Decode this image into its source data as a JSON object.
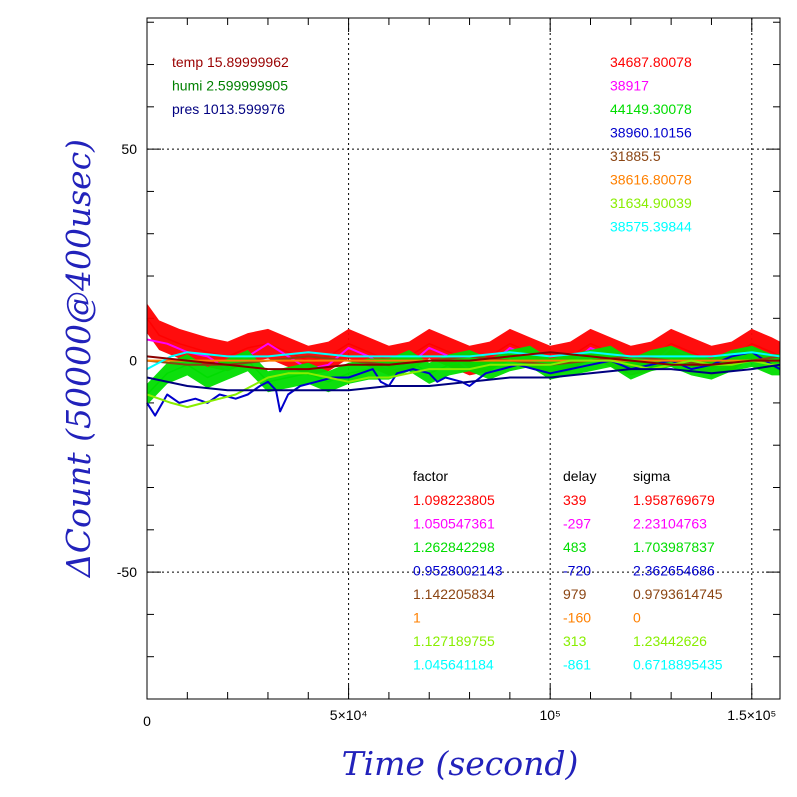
{
  "chart_data": {
    "type": "line",
    "xlabel": "Time (second)",
    "ylabel": "ΔCount (50000@400usec)",
    "xlim": [
      0,
      157000
    ],
    "ylim": [
      -80,
      81
    ],
    "x_ticks": [
      {
        "value": 0,
        "label": "0"
      },
      {
        "value": 50000,
        "label": "5×10⁴"
      },
      {
        "value": 100000,
        "label": "10⁵"
      },
      {
        "value": 150000,
        "label": "1.5×10⁵"
      }
    ],
    "y_ticks": [
      {
        "value": -50,
        "label": "-50"
      },
      {
        "value": 0,
        "label": "0"
      },
      {
        "value": 50,
        "label": "50"
      }
    ],
    "grid": true,
    "environment": [
      {
        "label": "temp 15.89999962",
        "color": "#990000"
      },
      {
        "label": "humi 2.599999905",
        "color": "#008000"
      },
      {
        "label": "pres 1013.599976",
        "color": "#000080"
      }
    ],
    "legend_values": [
      {
        "text": "34687.80078",
        "color": "#ff0000"
      },
      {
        "text": "38917",
        "color": "#ff00ff"
      },
      {
        "text": "44149.30078",
        "color": "#00dd00"
      },
      {
        "text": "38960.10156",
        "color": "#0000cc"
      },
      {
        "text": "31885.5",
        "color": "#8b4513"
      },
      {
        "text": "38616.80078",
        "color": "#ff8000"
      },
      {
        "text": "31634.90039",
        "color": "#88ee00"
      },
      {
        "text": "38575.39844",
        "color": "#00ffff"
      }
    ],
    "table_headers": [
      "factor",
      "delay",
      "sigma"
    ],
    "table_rows": [
      {
        "factor": "1.098223805",
        "delay": "339",
        "sigma": "1.958769679",
        "color": "#ff0000"
      },
      {
        "factor": "1.050547361",
        "delay": "-297",
        "sigma": "2.23104763",
        "color": "#ff00ff"
      },
      {
        "factor": "1.262842298",
        "delay": "483",
        "sigma": "1.703987837",
        "color": "#00dd00"
      },
      {
        "factor": "0.9528002143",
        "delay": "-720",
        "sigma": "2.362654686",
        "color": "#0000cc"
      },
      {
        "factor": "1.142205834",
        "delay": "979",
        "sigma": "0.9793614745",
        "color": "#8b4513"
      },
      {
        "factor": "1",
        "delay": "-160",
        "sigma": "0",
        "color": "#ff8000"
      },
      {
        "factor": "1.127189755",
        "delay": "313",
        "sigma": "1.23442626",
        "color": "#88ee00"
      },
      {
        "factor": "1.045641184",
        "delay": "-861",
        "sigma": "0.6718895435",
        "color": "#00ffff"
      }
    ],
    "series": [
      {
        "color": "#ff0000",
        "band": 3.5,
        "points": [
          [
            0,
            10
          ],
          [
            3000,
            6
          ],
          [
            8000,
            4
          ],
          [
            15000,
            2
          ],
          [
            20000,
            1
          ],
          [
            25000,
            3
          ],
          [
            30000,
            4
          ],
          [
            35000,
            2
          ],
          [
            40000,
            0
          ],
          [
            45000,
            1
          ],
          [
            50000,
            4
          ],
          [
            55000,
            2
          ],
          [
            60000,
            0
          ],
          [
            65000,
            1
          ],
          [
            70000,
            4
          ],
          [
            75000,
            2
          ],
          [
            80000,
            0
          ],
          [
            85000,
            1
          ],
          [
            90000,
            4
          ],
          [
            95000,
            2
          ],
          [
            100000,
            0
          ],
          [
            105000,
            1
          ],
          [
            110000,
            4
          ],
          [
            115000,
            2
          ],
          [
            120000,
            0
          ],
          [
            125000,
            1
          ],
          [
            130000,
            4
          ],
          [
            135000,
            2
          ],
          [
            140000,
            0
          ],
          [
            145000,
            1
          ],
          [
            150000,
            4
          ],
          [
            155000,
            2
          ],
          [
            157000,
            1
          ]
        ]
      },
      {
        "color": "#ff00ff",
        "band": 0,
        "points": [
          [
            0,
            5
          ],
          [
            5000,
            4
          ],
          [
            10000,
            2
          ],
          [
            15000,
            1
          ],
          [
            20000,
            -2
          ],
          [
            25000,
            1
          ],
          [
            30000,
            4
          ],
          [
            35000,
            1
          ],
          [
            40000,
            -2
          ],
          [
            45000,
            -1
          ],
          [
            50000,
            3
          ],
          [
            55000,
            1
          ],
          [
            60000,
            -2
          ],
          [
            65000,
            -1
          ],
          [
            70000,
            3
          ],
          [
            75000,
            1
          ],
          [
            80000,
            -2
          ],
          [
            85000,
            -1
          ],
          [
            90000,
            3
          ],
          [
            95000,
            1
          ],
          [
            100000,
            -2
          ],
          [
            105000,
            -1
          ],
          [
            110000,
            3
          ],
          [
            115000,
            1
          ],
          [
            120000,
            -3
          ],
          [
            125000,
            -1
          ],
          [
            130000,
            3
          ],
          [
            135000,
            1
          ],
          [
            140000,
            -2
          ],
          [
            145000,
            -1
          ],
          [
            150000,
            3
          ],
          [
            155000,
            0
          ],
          [
            157000,
            -1
          ]
        ]
      },
      {
        "color": "#00dd00",
        "band": 2.5,
        "points": [
          [
            0,
            -8
          ],
          [
            5000,
            -3
          ],
          [
            10000,
            -1
          ],
          [
            15000,
            -4
          ],
          [
            20000,
            -2
          ],
          [
            25000,
            0
          ],
          [
            30000,
            -5
          ],
          [
            35000,
            -4
          ],
          [
            40000,
            -3
          ],
          [
            45000,
            -5
          ],
          [
            50000,
            -3
          ],
          [
            55000,
            -2
          ],
          [
            60000,
            -2
          ],
          [
            65000,
            0
          ],
          [
            70000,
            -3
          ],
          [
            75000,
            -1
          ],
          [
            80000,
            0
          ],
          [
            85000,
            -2
          ],
          [
            90000,
            0
          ],
          [
            95000,
            1
          ],
          [
            100000,
            -2
          ],
          [
            105000,
            -1
          ],
          [
            110000,
            0
          ],
          [
            115000,
            1
          ],
          [
            120000,
            -2
          ],
          [
            125000,
            0
          ],
          [
            130000,
            1
          ],
          [
            135000,
            -1
          ],
          [
            140000,
            -2
          ],
          [
            145000,
            0
          ],
          [
            150000,
            1
          ],
          [
            155000,
            -1
          ],
          [
            157000,
            -1
          ]
        ]
      },
      {
        "color": "#0000cc",
        "band": 0,
        "points": [
          [
            0,
            -10
          ],
          [
            2000,
            -13
          ],
          [
            5000,
            -8
          ],
          [
            8000,
            -10
          ],
          [
            12000,
            -9
          ],
          [
            15000,
            -10
          ],
          [
            18000,
            -8
          ],
          [
            22000,
            -9
          ],
          [
            25000,
            -8
          ],
          [
            28000,
            -6
          ],
          [
            30000,
            -5
          ],
          [
            32000,
            -7
          ],
          [
            33000,
            -12
          ],
          [
            35000,
            -8
          ],
          [
            38000,
            -6
          ],
          [
            42000,
            -5
          ],
          [
            46000,
            -4
          ],
          [
            50000,
            -4
          ],
          [
            53000,
            -3
          ],
          [
            56000,
            -2
          ],
          [
            58000,
            -5
          ],
          [
            60000,
            -6
          ],
          [
            62000,
            -3
          ],
          [
            66000,
            -2
          ],
          [
            70000,
            -3
          ],
          [
            72000,
            -5
          ],
          [
            74000,
            -4
          ],
          [
            78000,
            -5
          ],
          [
            80000,
            -6
          ],
          [
            84000,
            -3
          ],
          [
            88000,
            -2
          ],
          [
            92000,
            -1
          ],
          [
            96000,
            -2
          ],
          [
            100000,
            -3
          ],
          [
            105000,
            -2
          ],
          [
            110000,
            -1
          ],
          [
            115000,
            0
          ],
          [
            120000,
            -2
          ],
          [
            125000,
            -1
          ],
          [
            130000,
            0
          ],
          [
            135000,
            -2
          ],
          [
            140000,
            -1
          ],
          [
            145000,
            1
          ],
          [
            150000,
            2
          ],
          [
            155000,
            -1
          ],
          [
            157000,
            -2
          ]
        ]
      },
      {
        "color": "#8b4513",
        "band": 0,
        "points": [
          [
            0,
            0
          ],
          [
            10000,
            -1
          ],
          [
            20000,
            -1
          ],
          [
            30000,
            0
          ],
          [
            40000,
            1
          ],
          [
            50000,
            0
          ],
          [
            60000,
            -1
          ],
          [
            70000,
            0
          ],
          [
            80000,
            1
          ],
          [
            90000,
            0
          ],
          [
            100000,
            -1
          ],
          [
            110000,
            0
          ],
          [
            120000,
            1
          ],
          [
            130000,
            0
          ],
          [
            140000,
            -1
          ],
          [
            150000,
            0
          ],
          [
            157000,
            1
          ]
        ]
      },
      {
        "color": "#ff8000",
        "band": 0,
        "points": [
          [
            0,
            0
          ],
          [
            20000,
            0
          ],
          [
            40000,
            0
          ],
          [
            60000,
            0
          ],
          [
            80000,
            0
          ],
          [
            100000,
            0
          ],
          [
            120000,
            0
          ],
          [
            140000,
            0
          ],
          [
            157000,
            0
          ]
        ]
      },
      {
        "color": "#88ee00",
        "band": 0,
        "points": [
          [
            0,
            -8
          ],
          [
            3000,
            -9
          ],
          [
            6000,
            -10
          ],
          [
            10000,
            -11
          ],
          [
            14000,
            -10
          ],
          [
            18000,
            -9
          ],
          [
            22000,
            -8
          ],
          [
            26000,
            -6
          ],
          [
            30000,
            -4
          ],
          [
            35000,
            -3
          ],
          [
            40000,
            -3
          ],
          [
            45000,
            -4
          ],
          [
            50000,
            -5
          ],
          [
            55000,
            -4
          ],
          [
            60000,
            -4
          ],
          [
            65000,
            -3
          ],
          [
            70000,
            -2
          ],
          [
            75000,
            -2
          ],
          [
            80000,
            -2
          ],
          [
            85000,
            -1
          ],
          [
            90000,
            -1
          ],
          [
            95000,
            -1
          ],
          [
            100000,
            -1
          ],
          [
            105000,
            0
          ],
          [
            110000,
            0
          ],
          [
            115000,
            0
          ],
          [
            120000,
            -1
          ],
          [
            125000,
            -2
          ],
          [
            130000,
            -1
          ],
          [
            135000,
            0
          ],
          [
            140000,
            -1
          ],
          [
            145000,
            -1
          ],
          [
            150000,
            0
          ],
          [
            155000,
            -1
          ],
          [
            157000,
            -1
          ]
        ]
      },
      {
        "color": "#00ffff",
        "band": 0,
        "points": [
          [
            0,
            -2
          ],
          [
            2000,
            -1
          ],
          [
            6000,
            1
          ],
          [
            10000,
            2
          ],
          [
            20000,
            1
          ],
          [
            30000,
            1
          ],
          [
            40000,
            2
          ],
          [
            50000,
            1
          ],
          [
            60000,
            1
          ],
          [
            70000,
            1
          ],
          [
            80000,
            1
          ],
          [
            90000,
            2
          ],
          [
            100000,
            1
          ],
          [
            110000,
            2
          ],
          [
            120000,
            1
          ],
          [
            130000,
            1
          ],
          [
            140000,
            1
          ],
          [
            150000,
            2
          ],
          [
            157000,
            1
          ]
        ]
      },
      {
        "color": "#000080",
        "band": 0,
        "points": [
          [
            0,
            -4
          ],
          [
            10000,
            -6
          ],
          [
            20000,
            -7
          ],
          [
            30000,
            -7
          ],
          [
            40000,
            -7
          ],
          [
            50000,
            -7
          ],
          [
            60000,
            -6
          ],
          [
            70000,
            -6
          ],
          [
            80000,
            -5
          ],
          [
            90000,
            -4
          ],
          [
            100000,
            -4
          ],
          [
            110000,
            -3
          ],
          [
            120000,
            -2
          ],
          [
            130000,
            -2
          ],
          [
            140000,
            -3
          ],
          [
            150000,
            -2
          ],
          [
            157000,
            -1
          ]
        ]
      },
      {
        "color": "#8b0000",
        "band": 0,
        "points": [
          [
            0,
            1
          ],
          [
            10000,
            0
          ],
          [
            20000,
            -1
          ],
          [
            30000,
            -2
          ],
          [
            40000,
            -2
          ],
          [
            50000,
            -1
          ],
          [
            60000,
            -1
          ],
          [
            70000,
            0
          ],
          [
            80000,
            0
          ],
          [
            90000,
            1
          ],
          [
            100000,
            2
          ],
          [
            110000,
            1
          ],
          [
            120000,
            0
          ],
          [
            130000,
            -1
          ],
          [
            140000,
            -1
          ],
          [
            150000,
            0
          ],
          [
            157000,
            0
          ]
        ]
      }
    ]
  }
}
